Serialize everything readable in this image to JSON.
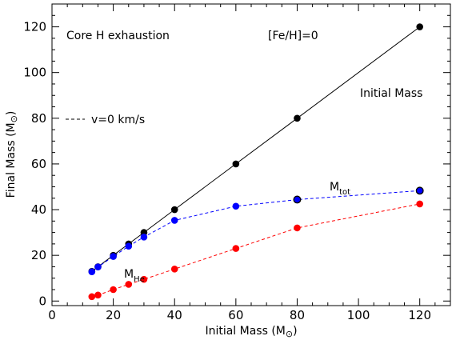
{
  "chart_data": {
    "type": "line",
    "xlabel": "Initial Mass (M",
    "xlabel_symbol": "⊙",
    "xlabel_close": ")",
    "ylabel": "Final Mass (M",
    "ylabel_symbol": "⊙",
    "ylabel_close": ")",
    "xlim": [
      0,
      130
    ],
    "ylim": [
      -2,
      130
    ],
    "xticks": [
      "0",
      "20",
      "40",
      "60",
      "80",
      "100",
      "120"
    ],
    "yticks": [
      "0",
      "20",
      "40",
      "60",
      "80",
      "100",
      "120"
    ],
    "grid": false,
    "annotations": {
      "condition": "Core H exhaustion",
      "metallicity": "[Fe/H]=0",
      "rotation": "v=0 km/s",
      "initial_mass": "Initial Mass",
      "mtot_main": "M",
      "mtot_sub": "tot",
      "mhe_main": "M",
      "mhe_sub": "He"
    },
    "series": [
      {
        "key": "initial",
        "color": "#000000",
        "line": "solid",
        "x": [
          13,
          15,
          20,
          25,
          30,
          40,
          60,
          80,
          120
        ],
        "y": [
          13,
          15,
          20,
          25,
          30,
          40,
          60,
          80,
          120
        ]
      },
      {
        "key": "mtot",
        "color": "#0000ff",
        "line": "dashed",
        "x": [
          13,
          15,
          20,
          25,
          30,
          40,
          60,
          80,
          120
        ],
        "y": [
          12.8,
          14.9,
          19.5,
          24.0,
          28.0,
          35.3,
          41.5,
          44.4,
          48.3
        ]
      },
      {
        "key": "mhe",
        "color": "#ff0000",
        "line": "dashed",
        "x": [
          13,
          15,
          20,
          25,
          30,
          40,
          60,
          80,
          120
        ],
        "y": [
          1.9,
          2.6,
          5.0,
          7.3,
          9.5,
          14.0,
          23.0,
          32.0,
          42.5
        ]
      }
    ]
  }
}
